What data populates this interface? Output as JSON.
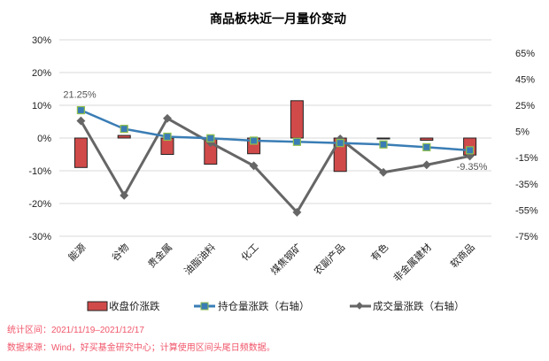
{
  "chart_data": {
    "type": "bar+line",
    "title": "商品板块近一月量价变动",
    "categories": [
      "能源",
      "谷物",
      "贵金属",
      "油脂油料",
      "化工",
      "煤焦钢矿",
      "农副产品",
      "有色",
      "非金属建材",
      "软商品"
    ],
    "series": [
      {
        "name": "收盘价涨跌",
        "type": "bar",
        "axis": "left",
        "color": "#d04a4a",
        "values": [
          -9.0,
          0.8,
          -5.0,
          -8.0,
          -4.8,
          11.4,
          -10.2,
          -0.2,
          -0.7,
          -5.2
        ]
      },
      {
        "name": "持仓量涨跌（右轴）",
        "type": "line",
        "axis": "right",
        "color": "#3a7db5",
        "marker_color": "#8fbf4d",
        "values": [
          21.25,
          7.0,
          1.0,
          -0.2,
          -2.0,
          -2.9,
          -3.8,
          -4.9,
          -7.0,
          -9.35
        ]
      },
      {
        "name": "成交量涨跌（右轴）",
        "type": "line",
        "axis": "right",
        "color": "#666666",
        "values": [
          13.1,
          -43.8,
          15.0,
          -3.6,
          -21.2,
          -56.7,
          -0.6,
          -26.2,
          -20.5,
          -13.8
        ]
      }
    ],
    "left_axis": {
      "ylim": [
        -30,
        30
      ],
      "ticks": [
        "30%",
        "20%",
        "10%",
        "0%",
        "-10%",
        "-20%",
        "-30%"
      ],
      "tick_values": [
        30,
        20,
        10,
        0,
        -10,
        -20,
        -30
      ]
    },
    "right_axis": {
      "ylim": [
        -75,
        75
      ],
      "ticks": [
        "65%",
        "45%",
        "25%",
        "5%",
        "-15%",
        "-35%",
        "-55%",
        "-75%"
      ],
      "tick_values": [
        65,
        45,
        25,
        5,
        -15,
        -35,
        -55,
        -75
      ]
    },
    "data_labels": {
      "first": "21.25%",
      "last": "-9.35%"
    },
    "grid": true,
    "legend_placement": "bottom"
  },
  "notes": {
    "period": "统计区间：2021/11/19–2021/12/17",
    "source": "数据来源：Wind，好买基金研究中心；计算使用区间头尾日频数据。"
  }
}
